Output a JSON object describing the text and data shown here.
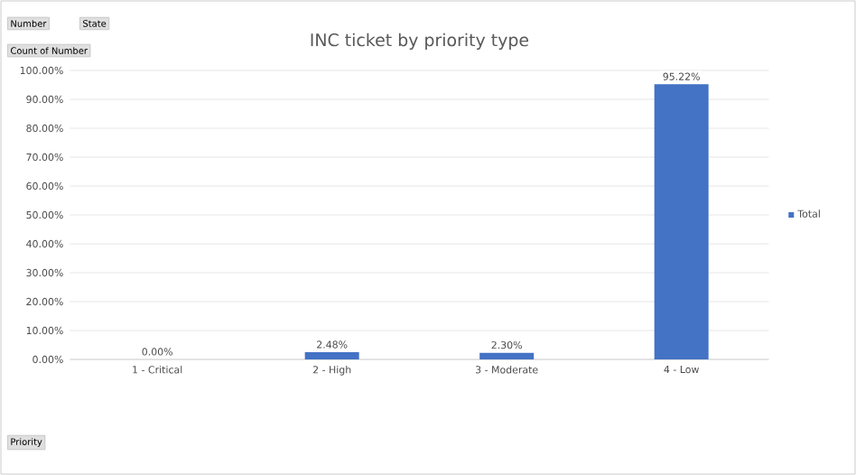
{
  "chart_data": {
    "type": "bar",
    "title": "INC ticket by priority type",
    "categories": [
      "1 - Critical",
      "2 - High",
      "3 - Moderate",
      "4 - Low"
    ],
    "series": [
      {
        "name": "Total",
        "color": "#4472c4",
        "values": [
          0,
          2.48,
          2.3,
          95.22
        ],
        "value_labels": [
          "0.00%",
          "2.48%",
          "2.30%",
          "95.22%"
        ]
      }
    ],
    "ylim": [
      0,
      100
    ],
    "yticks": [
      {
        "value": 0,
        "label": "0.00%"
      },
      {
        "value": 10,
        "label": "10.00%"
      },
      {
        "value": 20,
        "label": "20.00%"
      },
      {
        "value": 30,
        "label": "30.00%"
      },
      {
        "value": 40,
        "label": "40.00%"
      },
      {
        "value": 50,
        "label": "50.00%"
      },
      {
        "value": 60,
        "label": "60.00%"
      },
      {
        "value": 70,
        "label": "70.00%"
      },
      {
        "value": 80,
        "label": "80.00%"
      },
      {
        "value": 90,
        "label": "90.00%"
      },
      {
        "value": 100,
        "label": "100.00%"
      }
    ],
    "grid": "y",
    "legend": "right",
    "annotations": [
      "Number",
      "State",
      "Count of Number",
      "Priority"
    ]
  }
}
